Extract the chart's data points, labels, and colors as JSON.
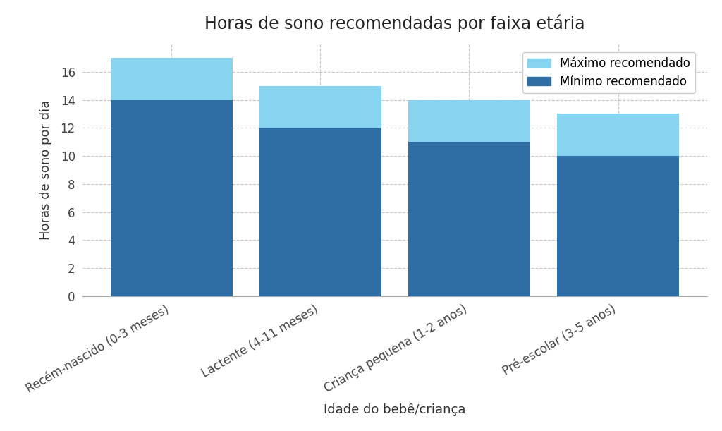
{
  "title": "Horas de sono recomendadas por faixa etária",
  "xlabel": "Idade do bebê/criança",
  "ylabel": "Horas de sono por dia",
  "categories": [
    "Recém-nascido (0-3 meses)",
    "Lactente (4-11 meses)",
    "Criança pequena (1-2 anos)",
    "Pré-escolar (3-5 anos)"
  ],
  "min_values": [
    14,
    12,
    11,
    10
  ],
  "max_values": [
    17,
    15,
    14,
    13
  ],
  "color_min": "#2f6ea5",
  "color_max": "#87d4f0",
  "ylim": [
    0,
    18
  ],
  "yticks": [
    0,
    2,
    4,
    6,
    8,
    10,
    12,
    14,
    16
  ],
  "legend_max": "Máximo recomendado",
  "legend_min": "Mínimo recomendado",
  "background_color": "#ffffff",
  "grid_color": "#b0b0b0",
  "title_fontsize": 17,
  "label_fontsize": 13,
  "tick_fontsize": 12,
  "legend_fontsize": 12,
  "bar_width": 0.82
}
